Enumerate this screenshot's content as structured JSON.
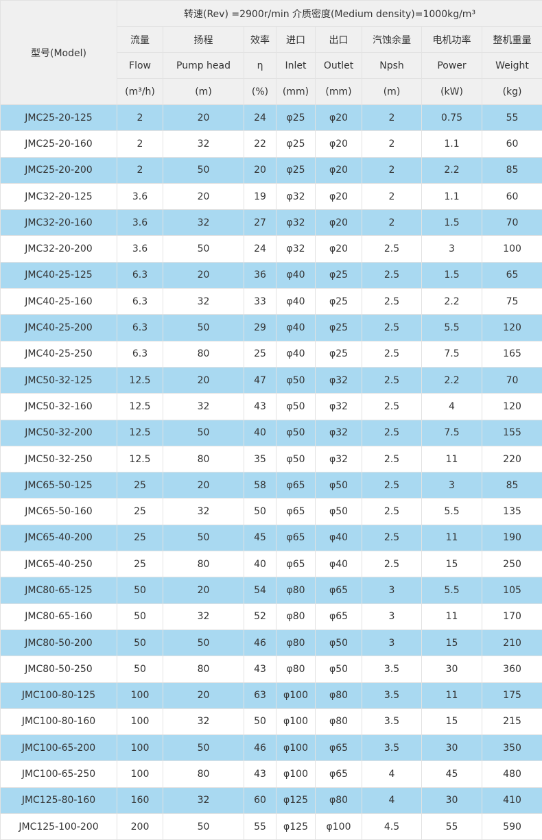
{
  "header": {
    "model": "型号(Model)",
    "conditions": "转速(Rev) =2900r/min   介质密度(Medium density)=1000kg/m³",
    "columns": [
      {
        "cn": "流量",
        "en": "Flow",
        "unit": "(m³/h)"
      },
      {
        "cn": "扬程",
        "en": "Pump head",
        "unit": "(m)"
      },
      {
        "cn": "效率",
        "en": "η",
        "unit": "(%)"
      },
      {
        "cn": "进口",
        "en": "Inlet",
        "unit": "(mm)"
      },
      {
        "cn": "出口",
        "en": "Outlet",
        "unit": "(mm)"
      },
      {
        "cn": "汽蚀余量",
        "en": "Npsh",
        "unit": "(m)"
      },
      {
        "cn": "电机功率",
        "en": "Power",
        "unit": "(kW)"
      },
      {
        "cn": "整机重量",
        "en": "Weight",
        "unit": "(kg)"
      }
    ]
  },
  "rows": [
    [
      "JMC25-20-125",
      "2",
      "20",
      "24",
      "φ25",
      "φ20",
      "2",
      "0.75",
      "55"
    ],
    [
      "JMC25-20-160",
      "2",
      "32",
      "22",
      "φ25",
      "φ20",
      "2",
      "1.1",
      "60"
    ],
    [
      "JMC25-20-200",
      "2",
      "50",
      "20",
      "φ25",
      "φ20",
      "2",
      "2.2",
      "85"
    ],
    [
      "JMC32-20-125",
      "3.6",
      "20",
      "19",
      "φ32",
      "φ20",
      "2",
      "1.1",
      "60"
    ],
    [
      "JMC32-20-160",
      "3.6",
      "32",
      "27",
      "φ32",
      "φ20",
      "2",
      "1.5",
      "70"
    ],
    [
      "JMC32-20-200",
      "3.6",
      "50",
      "24",
      "φ32",
      "φ20",
      "2.5",
      "3",
      "100"
    ],
    [
      "JMC40-25-125",
      "6.3",
      "20",
      "36",
      "φ40",
      "φ25",
      "2.5",
      "1.5",
      "65"
    ],
    [
      "JMC40-25-160",
      "6.3",
      "32",
      "33",
      "φ40",
      "φ25",
      "2.5",
      "2.2",
      "75"
    ],
    [
      "JMC40-25-200",
      "6.3",
      "50",
      "29",
      "φ40",
      "φ25",
      "2.5",
      "5.5",
      "120"
    ],
    [
      "JMC40-25-250",
      "6.3",
      "80",
      "25",
      "φ40",
      "φ25",
      "2.5",
      "7.5",
      "165"
    ],
    [
      "JMC50-32-125",
      "12.5",
      "20",
      "47",
      "φ50",
      "φ32",
      "2.5",
      "2.2",
      "70"
    ],
    [
      "JMC50-32-160",
      "12.5",
      "32",
      "43",
      "φ50",
      "φ32",
      "2.5",
      "4",
      "120"
    ],
    [
      "JMC50-32-200",
      "12.5",
      "50",
      "40",
      "φ50",
      "φ32",
      "2.5",
      "7.5",
      "155"
    ],
    [
      "JMC50-32-250",
      "12.5",
      "80",
      "35",
      "φ50",
      "φ32",
      "2.5",
      "11",
      "220"
    ],
    [
      "JMC65-50-125",
      "25",
      "20",
      "58",
      "φ65",
      "φ50",
      "2.5",
      "3",
      "85"
    ],
    [
      "JMC65-50-160",
      "25",
      "32",
      "50",
      "φ65",
      "φ50",
      "2.5",
      "5.5",
      "135"
    ],
    [
      "JMC65-40-200",
      "25",
      "50",
      "45",
      "φ65",
      "φ40",
      "2.5",
      "11",
      "190"
    ],
    [
      "JMC65-40-250",
      "25",
      "80",
      "40",
      "φ65",
      "φ40",
      "2.5",
      "15",
      "250"
    ],
    [
      "JMC80-65-125",
      "50",
      "20",
      "54",
      "φ80",
      "φ65",
      "3",
      "5.5",
      "105"
    ],
    [
      "JMC80-65-160",
      "50",
      "32",
      "52",
      "φ80",
      "φ65",
      "3",
      "11",
      "170"
    ],
    [
      "JMC80-50-200",
      "50",
      "50",
      "46",
      "φ80",
      "φ50",
      "3",
      "15",
      "210"
    ],
    [
      "JMC80-50-250",
      "50",
      "80",
      "43",
      "φ80",
      "φ50",
      "3.5",
      "30",
      "360"
    ],
    [
      "JMC100-80-125",
      "100",
      "20",
      "63",
      "φ100",
      "φ80",
      "3.5",
      "11",
      "175"
    ],
    [
      "JMC100-80-160",
      "100",
      "32",
      "50",
      "φ100",
      "φ80",
      "3.5",
      "15",
      "215"
    ],
    [
      "JMC100-65-200",
      "100",
      "50",
      "46",
      "φ100",
      "φ65",
      "3.5",
      "30",
      "350"
    ],
    [
      "JMC100-65-250",
      "100",
      "80",
      "43",
      "φ100",
      "φ65",
      "4",
      "45",
      "480"
    ],
    [
      "JMC125-80-160",
      "160",
      "32",
      "60",
      "φ125",
      "φ80",
      "4",
      "30",
      "410"
    ],
    [
      "JMC125-100-200",
      "200",
      "50",
      "55",
      "φ125",
      "φ100",
      "4.5",
      "55",
      "590"
    ]
  ]
}
